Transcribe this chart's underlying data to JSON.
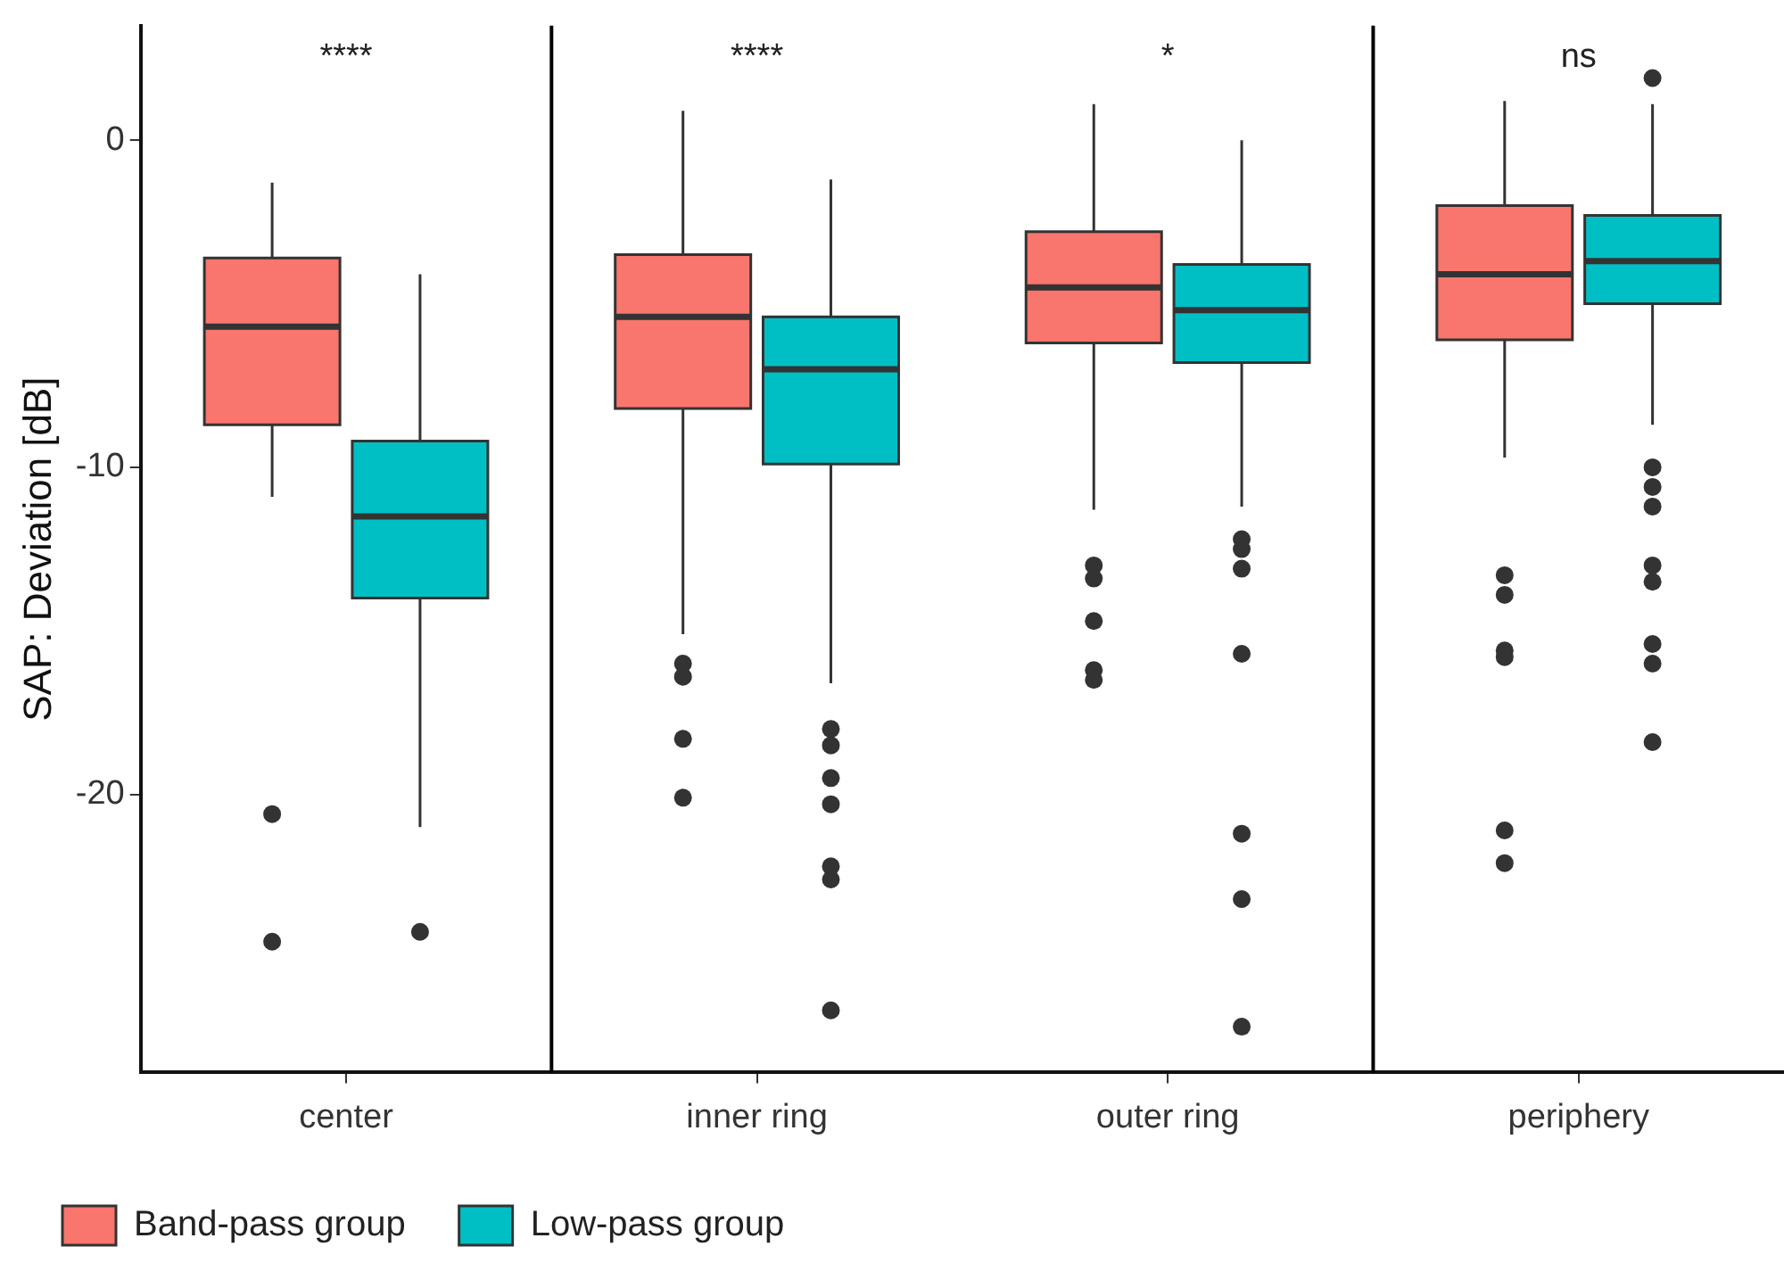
{
  "chart_data": {
    "type": "box",
    "ylabel": "SAP: Deviation [dB]",
    "categories": [
      "center",
      "inner ring",
      "outer ring",
      "periphery"
    ],
    "ylim": [
      -28.5,
      3.5
    ],
    "yticks": [
      0,
      -10,
      -20
    ],
    "grid": false,
    "legend": "bottom",
    "annotations": [
      "****",
      "****",
      "*",
      "ns"
    ],
    "series": [
      {
        "name": "Band-pass group",
        "color": "#f8766d",
        "boxes": [
          {
            "low": -10.9,
            "q1": -8.7,
            "median": -5.7,
            "q3": -3.6,
            "high": -1.3,
            "outliers": [
              -20.6,
              -24.5
            ]
          },
          {
            "low": -15.1,
            "q1": -8.2,
            "median": -5.4,
            "q3": -3.5,
            "high": 0.9,
            "outliers": [
              -16.0,
              -16.4,
              -18.3,
              -20.1
            ]
          },
          {
            "low": -11.3,
            "q1": -6.2,
            "median": -4.5,
            "q3": -2.8,
            "high": 1.1,
            "outliers": [
              -13.0,
              -13.4,
              -14.7,
              -16.2,
              -16.5
            ]
          },
          {
            "low": -9.7,
            "q1": -6.1,
            "median": -4.1,
            "q3": -2.0,
            "high": 1.2,
            "outliers": [
              -13.3,
              -13.9,
              -15.6,
              -15.8,
              -21.1,
              -22.1
            ]
          }
        ]
      },
      {
        "name": "Low-pass group",
        "color": "#00bfc4",
        "boxes": [
          {
            "low": -21.0,
            "q1": -14.0,
            "median": -11.5,
            "q3": -9.2,
            "high": -4.1,
            "outliers": [
              -24.2
            ]
          },
          {
            "low": -16.6,
            "q1": -9.9,
            "median": -7.0,
            "q3": -5.4,
            "high": -1.2,
            "outliers": [
              -18.0,
              -18.5,
              -19.5,
              -20.3,
              -22.2,
              -22.6,
              -26.6
            ]
          },
          {
            "low": -11.2,
            "q1": -6.8,
            "median": -5.2,
            "q3": -3.8,
            "high": 0.0,
            "outliers": [
              -12.2,
              -12.5,
              -13.1,
              -15.7,
              -21.2,
              -23.2,
              -27.1
            ]
          },
          {
            "low": -8.7,
            "q1": -5.0,
            "median": -3.7,
            "q3": -2.3,
            "high": 1.1,
            "outliers": [
              1.9,
              -10.0,
              -10.6,
              -11.2,
              -13.0,
              -13.5,
              -15.4,
              -16.0,
              -18.4
            ]
          }
        ]
      }
    ]
  }
}
